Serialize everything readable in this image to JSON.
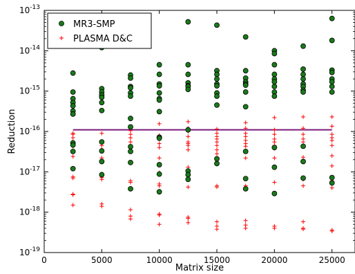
{
  "chart_data": {
    "type": "scatter",
    "xlabel": "Matrix size",
    "ylabel": "Reduction",
    "xlim": [
      0,
      27000
    ],
    "ylim_log10": [
      -19,
      -13
    ],
    "y_scale": "log",
    "x_ticks": [
      0,
      5000,
      10000,
      15000,
      20000,
      25000
    ],
    "x_tick_labels": [
      "0",
      "5000",
      "10000",
      "15000",
      "20000",
      "25000"
    ],
    "y_ticks_log10": [
      -19,
      -18,
      -17,
      -16,
      -15,
      -14,
      -13
    ],
    "y_tick_base": "10",
    "y_tick_exponents": [
      "-19",
      "-18",
      "-17",
      "-16",
      "-15",
      "-14",
      "-13"
    ],
    "grid": false,
    "legend_position": "top-left",
    "series": [
      {
        "name": "MR3-SMP",
        "marker": "circle",
        "color": "#1a7a1a",
        "points": [
          [
            2500,
            2.8e-15
          ],
          [
            2500,
            9.5e-16
          ],
          [
            2500,
            6.5e-16
          ],
          [
            2500,
            5.2e-16
          ],
          [
            2500,
            4.3e-16
          ],
          [
            2500,
            3.2e-16
          ],
          [
            2500,
            2.7e-16
          ],
          [
            2500,
            5.2e-17
          ],
          [
            2500,
            4.6e-17
          ],
          [
            2500,
            3.2e-17
          ],
          [
            2500,
            1.2e-17
          ],
          [
            5000,
            1.2e-14
          ],
          [
            5000,
            1.15e-15
          ],
          [
            5000,
            9.5e-16
          ],
          [
            5000,
            8e-16
          ],
          [
            5000,
            7e-16
          ],
          [
            5000,
            5.2e-16
          ],
          [
            5000,
            3.3e-16
          ],
          [
            5000,
            5.5e-17
          ],
          [
            5000,
            3.3e-17
          ],
          [
            5000,
            1.8e-17
          ],
          [
            5000,
            8.5e-18
          ],
          [
            7500,
            2.5e-15
          ],
          [
            7500,
            2.1e-15
          ],
          [
            7500,
            1.3e-15
          ],
          [
            7500,
            1.2e-15
          ],
          [
            7500,
            9e-16
          ],
          [
            7500,
            7.5e-16
          ],
          [
            7500,
            2.1e-16
          ],
          [
            7500,
            1.3e-16
          ],
          [
            7500,
            4.2e-17
          ],
          [
            7500,
            3.2e-17
          ],
          [
            7500,
            1.7e-17
          ],
          [
            7500,
            3.8e-18
          ],
          [
            10000,
            4.5e-15
          ],
          [
            10000,
            2.6e-15
          ],
          [
            10000,
            1.5e-15
          ],
          [
            10000,
            1.35e-15
          ],
          [
            10000,
            9e-16
          ],
          [
            10000,
            6.5e-16
          ],
          [
            10000,
            6e-16
          ],
          [
            10000,
            3.1e-16
          ],
          [
            10000,
            7.2e-17
          ],
          [
            10000,
            6.8e-17
          ],
          [
            10000,
            1.5e-17
          ],
          [
            10000,
            8.8e-18
          ],
          [
            10000,
            3.2e-18
          ],
          [
            12500,
            5.2e-14
          ],
          [
            12500,
            4.5e-15
          ],
          [
            12500,
            2.6e-15
          ],
          [
            12500,
            1.6e-15
          ],
          [
            12500,
            1.35e-15
          ],
          [
            12500,
            1.3e-15
          ],
          [
            12500,
            1.1e-15
          ],
          [
            12500,
            1.1e-16
          ],
          [
            12500,
            1.05e-17
          ],
          [
            12500,
            8.5e-18
          ],
          [
            12500,
            6.5e-18
          ],
          [
            15000,
            4.3e-14
          ],
          [
            15000,
            3.2e-15
          ],
          [
            15000,
            2.6e-15
          ],
          [
            15000,
            2e-15
          ],
          [
            15000,
            1.5e-15
          ],
          [
            15000,
            1.35e-15
          ],
          [
            15000,
            9e-16
          ],
          [
            15000,
            7.5e-16
          ],
          [
            15000,
            4.5e-16
          ],
          [
            15000,
            2.1e-17
          ],
          [
            15000,
            1.6e-17
          ],
          [
            17500,
            2.2e-14
          ],
          [
            17500,
            3.2e-15
          ],
          [
            17500,
            2.1e-15
          ],
          [
            17500,
            1.7e-15
          ],
          [
            17500,
            1.5e-15
          ],
          [
            17500,
            1.4e-15
          ],
          [
            17500,
            9.5e-16
          ],
          [
            17500,
            4.1e-16
          ],
          [
            17500,
            3.2e-17
          ],
          [
            17500,
            6.8e-18
          ],
          [
            17500,
            3.8e-18
          ],
          [
            20000,
            1e-14
          ],
          [
            20000,
            8.5e-15
          ],
          [
            20000,
            4.5e-15
          ],
          [
            20000,
            2.6e-15
          ],
          [
            20000,
            2e-15
          ],
          [
            20000,
            1.7e-15
          ],
          [
            20000,
            1.3e-15
          ],
          [
            20000,
            9.5e-16
          ],
          [
            20000,
            7.5e-16
          ],
          [
            20000,
            4e-17
          ],
          [
            20000,
            1.3e-17
          ],
          [
            20000,
            2.9e-18
          ],
          [
            22500,
            1.3e-14
          ],
          [
            22500,
            3.5e-15
          ],
          [
            22500,
            2.6e-15
          ],
          [
            22500,
            2e-15
          ],
          [
            22500,
            1.5e-15
          ],
          [
            22500,
            1.3e-15
          ],
          [
            22500,
            1.05e-15
          ],
          [
            22500,
            9.5e-16
          ],
          [
            22500,
            4.3e-17
          ],
          [
            22500,
            1.8e-17
          ],
          [
            22500,
            7e-18
          ],
          [
            25000,
            6.3e-14
          ],
          [
            25000,
            1.8e-14
          ],
          [
            25000,
            3.3e-15
          ],
          [
            25000,
            2.9e-15
          ],
          [
            25000,
            2e-15
          ],
          [
            25000,
            1.7e-15
          ],
          [
            25000,
            1.3e-15
          ],
          [
            25000,
            9.5e-16
          ],
          [
            25000,
            7.2e-18
          ],
          [
            25000,
            5.3e-18
          ]
        ]
      },
      {
        "name": "PLASMA D&C",
        "marker": "plus",
        "color": "#ff0000",
        "points": [
          [
            2500,
            9e-17
          ],
          [
            2500,
            8.5e-17
          ],
          [
            2500,
            7e-17
          ],
          [
            2500,
            5.5e-17
          ],
          [
            2500,
            4.3e-17
          ],
          [
            2500,
            3.3e-17
          ],
          [
            2500,
            2.4e-17
          ],
          [
            2500,
            7.5e-18
          ],
          [
            2500,
            7e-18
          ],
          [
            2500,
            2.8e-18
          ],
          [
            2500,
            2.7e-18
          ],
          [
            2500,
            1.5e-18
          ],
          [
            5000,
            9e-17
          ],
          [
            5000,
            5.7e-17
          ],
          [
            5000,
            4.5e-17
          ],
          [
            5000,
            3.5e-17
          ],
          [
            5000,
            2.2e-17
          ],
          [
            5000,
            7.2e-18
          ],
          [
            5000,
            6.5e-18
          ],
          [
            5000,
            1.6e-18
          ],
          [
            5000,
            1.4e-18
          ],
          [
            7500,
            1.05e-16
          ],
          [
            7500,
            8.5e-17
          ],
          [
            7500,
            7e-17
          ],
          [
            7500,
            5.5e-17
          ],
          [
            7500,
            4.5e-17
          ],
          [
            7500,
            6e-18
          ],
          [
            7500,
            5.5e-18
          ],
          [
            7500,
            1.15e-18
          ],
          [
            7500,
            8e-19
          ],
          [
            7500,
            6.8e-19
          ],
          [
            10000,
            1.55e-16
          ],
          [
            10000,
            8e-17
          ],
          [
            10000,
            6.5e-17
          ],
          [
            10000,
            5e-17
          ],
          [
            10000,
            4e-17
          ],
          [
            10000,
            2.2e-17
          ],
          [
            10000,
            9.5e-18
          ],
          [
            10000,
            5e-18
          ],
          [
            10000,
            4.5e-18
          ],
          [
            10000,
            9e-19
          ],
          [
            10000,
            8.5e-19
          ],
          [
            10000,
            5e-19
          ],
          [
            12500,
            1.75e-16
          ],
          [
            12500,
            1.2e-16
          ],
          [
            12500,
            1e-16
          ],
          [
            12500,
            7.5e-17
          ],
          [
            12500,
            5.5e-17
          ],
          [
            12500,
            5e-17
          ],
          [
            12500,
            4.5e-17
          ],
          [
            12500,
            3.5e-17
          ],
          [
            12500,
            1.3e-17
          ],
          [
            12500,
            4.2e-18
          ],
          [
            12500,
            7.5e-19
          ],
          [
            12500,
            7e-19
          ],
          [
            12500,
            5.5e-19
          ],
          [
            15000,
            1.15e-16
          ],
          [
            15000,
            9e-17
          ],
          [
            15000,
            7.5e-17
          ],
          [
            15000,
            6.5e-17
          ],
          [
            15000,
            5.5e-17
          ],
          [
            15000,
            4.5e-17
          ],
          [
            15000,
            3.5e-17
          ],
          [
            15000,
            2.8e-17
          ],
          [
            15000,
            4.5e-18
          ],
          [
            15000,
            4.2e-18
          ],
          [
            15000,
            5.8e-19
          ],
          [
            15000,
            4.5e-19
          ],
          [
            15000,
            3.8e-19
          ],
          [
            17500,
            1.65e-16
          ],
          [
            17500,
            1.2e-16
          ],
          [
            17500,
            9e-17
          ],
          [
            17500,
            7.5e-17
          ],
          [
            17500,
            6e-17
          ],
          [
            17500,
            5e-17
          ],
          [
            17500,
            4.3e-17
          ],
          [
            17500,
            2.2e-17
          ],
          [
            17500,
            4.5e-18
          ],
          [
            17500,
            6.2e-19
          ],
          [
            17500,
            4.8e-19
          ],
          [
            17500,
            4e-19
          ],
          [
            20000,
            2.2e-16
          ],
          [
            20000,
            1.1e-16
          ],
          [
            20000,
            8.5e-17
          ],
          [
            20000,
            6.5e-17
          ],
          [
            20000,
            5.5e-17
          ],
          [
            20000,
            4.5e-17
          ],
          [
            20000,
            3.8e-17
          ],
          [
            20000,
            2.2e-17
          ],
          [
            20000,
            5.5e-18
          ],
          [
            20000,
            4.5e-19
          ],
          [
            20000,
            4e-19
          ],
          [
            22500,
            2.3e-16
          ],
          [
            22500,
            1.2e-16
          ],
          [
            22500,
            8.5e-17
          ],
          [
            22500,
            6.5e-17
          ],
          [
            22500,
            5.5e-17
          ],
          [
            22500,
            4.5e-17
          ],
          [
            22500,
            2.3e-17
          ],
          [
            22500,
            6.5e-18
          ],
          [
            22500,
            4.5e-18
          ],
          [
            22500,
            5.8e-19
          ],
          [
            22500,
            4e-19
          ],
          [
            22500,
            3.8e-19
          ],
          [
            25000,
            2.3e-16
          ],
          [
            25000,
            1.35e-16
          ],
          [
            25000,
            8.5e-17
          ],
          [
            25000,
            7e-17
          ],
          [
            25000,
            6e-17
          ],
          [
            25000,
            4.5e-17
          ],
          [
            25000,
            2.5e-17
          ],
          [
            25000,
            1.4e-17
          ],
          [
            25000,
            6e-18
          ],
          [
            25000,
            4e-18
          ],
          [
            25000,
            3.6e-19
          ],
          [
            25000,
            3.4e-19
          ]
        ]
      }
    ],
    "lines": [
      {
        "color": "#7a1a7a",
        "x": [
          2500,
          25000
        ],
        "y": [
          1.1e-16,
          1.1e-16
        ]
      }
    ]
  }
}
